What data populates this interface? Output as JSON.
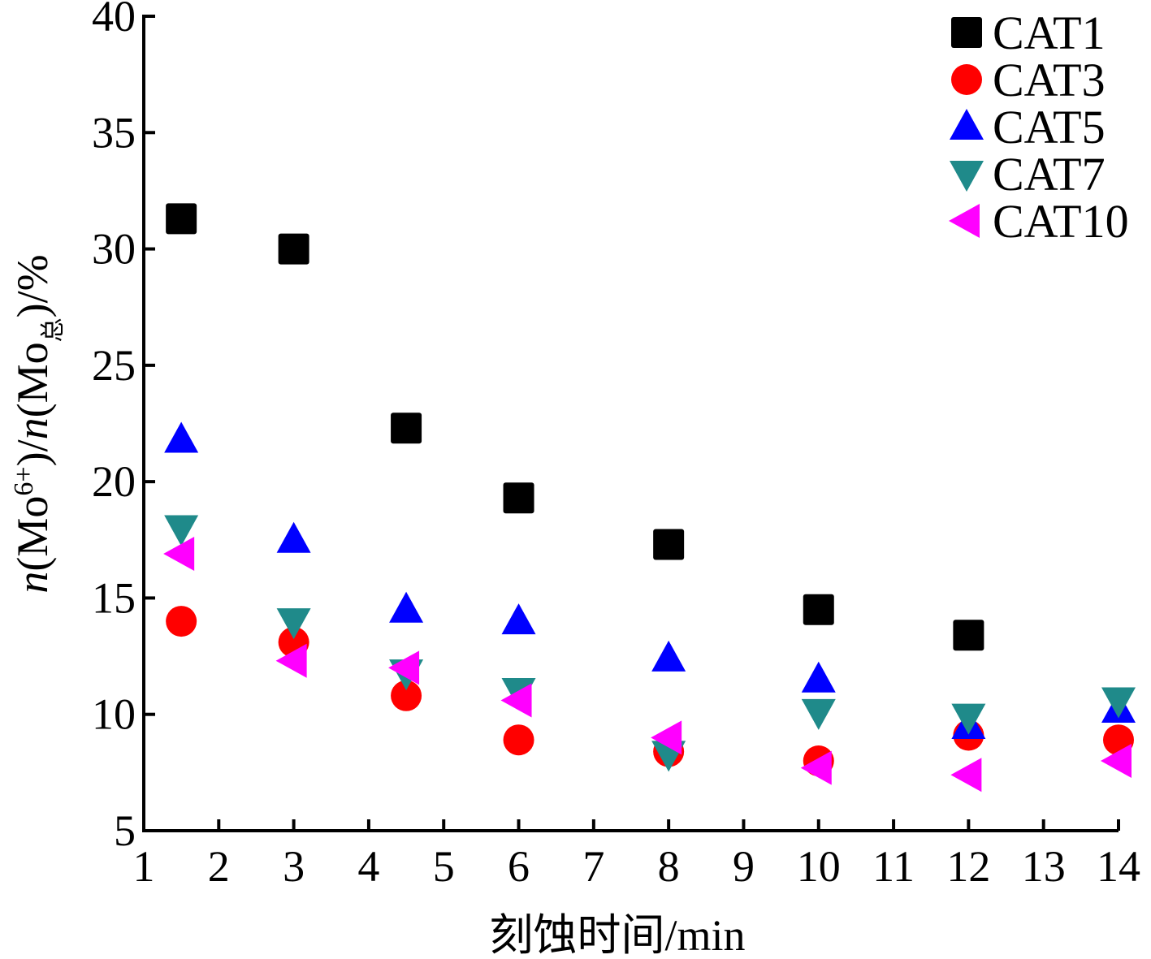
{
  "chart_data": {
    "type": "scatter",
    "title": "",
    "xlabel": "刻蚀时间/min",
    "ylabel": {
      "parts": [
        {
          "text": "n",
          "style": "italic"
        },
        {
          "text": "(Mo"
        },
        {
          "text": "6+",
          "style": "sup"
        },
        {
          "text": ")/"
        },
        {
          "text": "n",
          "style": "italic"
        },
        {
          "text": "(Mo"
        },
        {
          "text": "总",
          "style": "sub"
        },
        {
          "text": ")/%"
        }
      ]
    },
    "xlim": [
      1,
      14
    ],
    "ylim": [
      5,
      40
    ],
    "xticks": [
      "1",
      "2",
      "3",
      "4",
      "5",
      "6",
      "7",
      "8",
      "9",
      "10",
      "11",
      "12",
      "13",
      "14"
    ],
    "yticks": [
      "5",
      "10",
      "15",
      "20",
      "25",
      "30",
      "35",
      "40"
    ],
    "grid": false,
    "legend_position": "top-right",
    "series": [
      {
        "name": "CAT1",
        "marker": "square",
        "color": "#000000",
        "x": [
          1.5,
          3,
          4.5,
          6,
          8,
          10,
          12
        ],
        "y": [
          31.3,
          30.0,
          22.3,
          19.3,
          17.3,
          14.5,
          13.4
        ]
      },
      {
        "name": "CAT3",
        "marker": "circle",
        "color": "#ff0000",
        "x": [
          1.5,
          3,
          4.5,
          6,
          8,
          10,
          12,
          14
        ],
        "y": [
          14.0,
          13.1,
          10.8,
          8.9,
          8.4,
          8.0,
          9.1,
          8.9
        ]
      },
      {
        "name": "CAT5",
        "marker": "triangle-up",
        "color": "#0000ff",
        "x": [
          1.5,
          3,
          4.5,
          6,
          8,
          10,
          12,
          14
        ],
        "y": [
          21.8,
          17.5,
          14.5,
          14.0,
          12.4,
          11.5,
          9.5,
          10.2
        ]
      },
      {
        "name": "CAT7",
        "marker": "triangle-down",
        "color": "#1f8a8a",
        "x": [
          1.5,
          3,
          4.5,
          6,
          8,
          10,
          12,
          14
        ],
        "y": [
          18.0,
          14.0,
          11.8,
          11.0,
          8.3,
          10.1,
          9.9,
          10.6
        ]
      },
      {
        "name": "CAT10",
        "marker": "triangle-left",
        "color": "#ff00ff",
        "x": [
          1.5,
          3,
          4.5,
          6,
          8,
          10,
          12,
          14
        ],
        "y": [
          16.9,
          12.3,
          12.0,
          10.6,
          9.0,
          7.7,
          7.4,
          8.0
        ]
      }
    ]
  }
}
